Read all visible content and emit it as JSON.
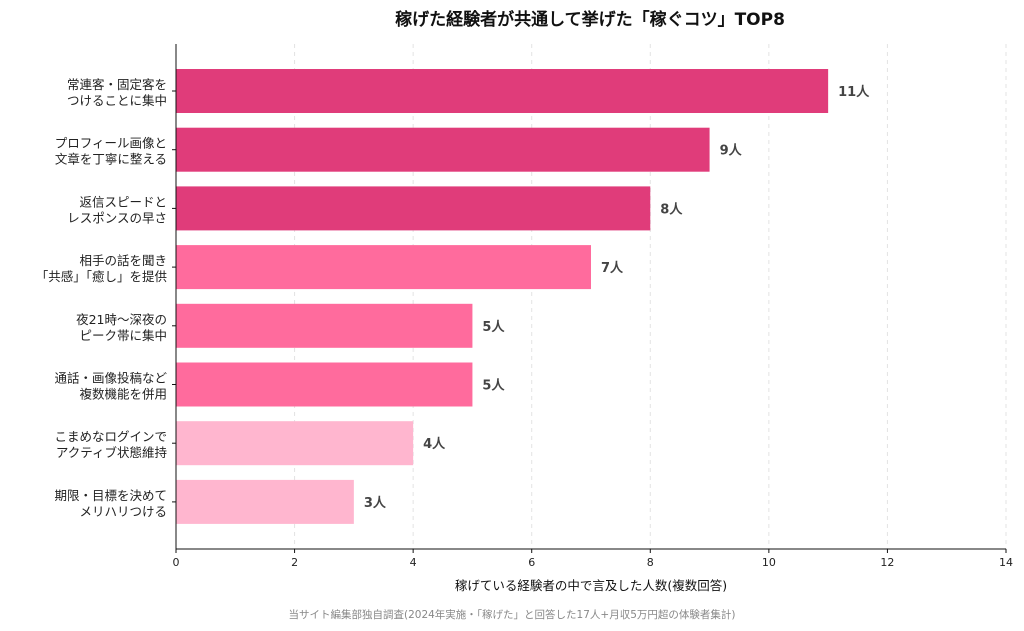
{
  "chart_data": {
    "type": "bar",
    "orientation": "horizontal",
    "title": "稼げた経験者が共通して挙げた「稼ぐコツ」TOP8",
    "xlabel": "稼げている経験者の中で言及した人数(複数回答)",
    "ylabel": "",
    "xlim": [
      0,
      14
    ],
    "xticks": [
      0,
      2,
      4,
      6,
      8,
      10,
      12,
      14
    ],
    "grid": true,
    "categories": [
      [
        "常連客・固定客を",
        "つけることに集中"
      ],
      [
        "プロフィール画像と",
        "文章を丁寧に整える"
      ],
      [
        "返信スピードと",
        "レスポンスの早さ"
      ],
      [
        "相手の話を聞き",
        "「共感」「癒し」を提供"
      ],
      [
        "夜21時〜深夜の",
        "ピーク帯に集中"
      ],
      [
        "通話・画像投稿など",
        "複数機能を併用"
      ],
      [
        "こまめなログインで",
        "アクティブ状態維持"
      ],
      [
        "期限・目標を決めて",
        "メリハリつける"
      ]
    ],
    "values": [
      11,
      9,
      8,
      7,
      5,
      5,
      4,
      3
    ],
    "value_labels": [
      "11人",
      "9人",
      "8人",
      "7人",
      "5人",
      "5人",
      "4人",
      "3人"
    ],
    "colors": [
      "#e03c7a",
      "#e03c7a",
      "#e03c7a",
      "#ff6b9d",
      "#ff6b9d",
      "#ff6b9d",
      "#ffb6cf",
      "#ffb6cf"
    ]
  },
  "source_note": "当サイト編集部独自調査(2024年実施・「稼げた」と回答した17人+月収5万円超の体験者集計)"
}
